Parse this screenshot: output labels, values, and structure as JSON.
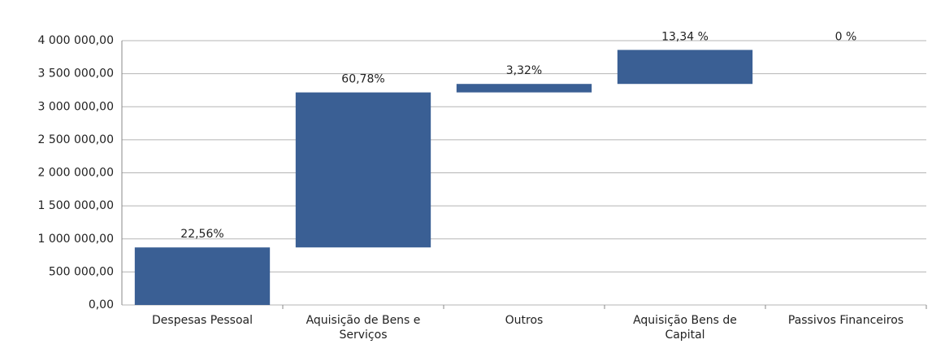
{
  "chart_data": {
    "type": "waterfall",
    "categories": [
      "Despesas Pessoal",
      "Aquisição de Bens e Serviços",
      "Outros",
      "Aquisição Bens de Capital",
      "Passivos Financeiros"
    ],
    "values": [
      870800,
      2346100,
      128200,
      514900,
      0
    ],
    "annotations": [
      "22,56%",
      "60,78%",
      "3,32%",
      "13,34 %",
      "0 %"
    ],
    "color": "#3a5f94",
    "ylim": [
      0,
      4000000
    ],
    "yticks": [
      {
        "value": 0,
        "label": "0,00"
      },
      {
        "value": 500000,
        "label": "500 000,00"
      },
      {
        "value": 1000000,
        "label": "1 000 000,00"
      },
      {
        "value": 1500000,
        "label": "1 500 000,00"
      },
      {
        "value": 2000000,
        "label": "2 000 000,00"
      },
      {
        "value": 2500000,
        "label": "2 500 000,00"
      },
      {
        "value": 3000000,
        "label": "3 000 000,00"
      },
      {
        "value": 3500000,
        "label": "3 500 000,00"
      },
      {
        "value": 4000000,
        "label": "4 000 000,00"
      }
    ],
    "grid": true
  }
}
